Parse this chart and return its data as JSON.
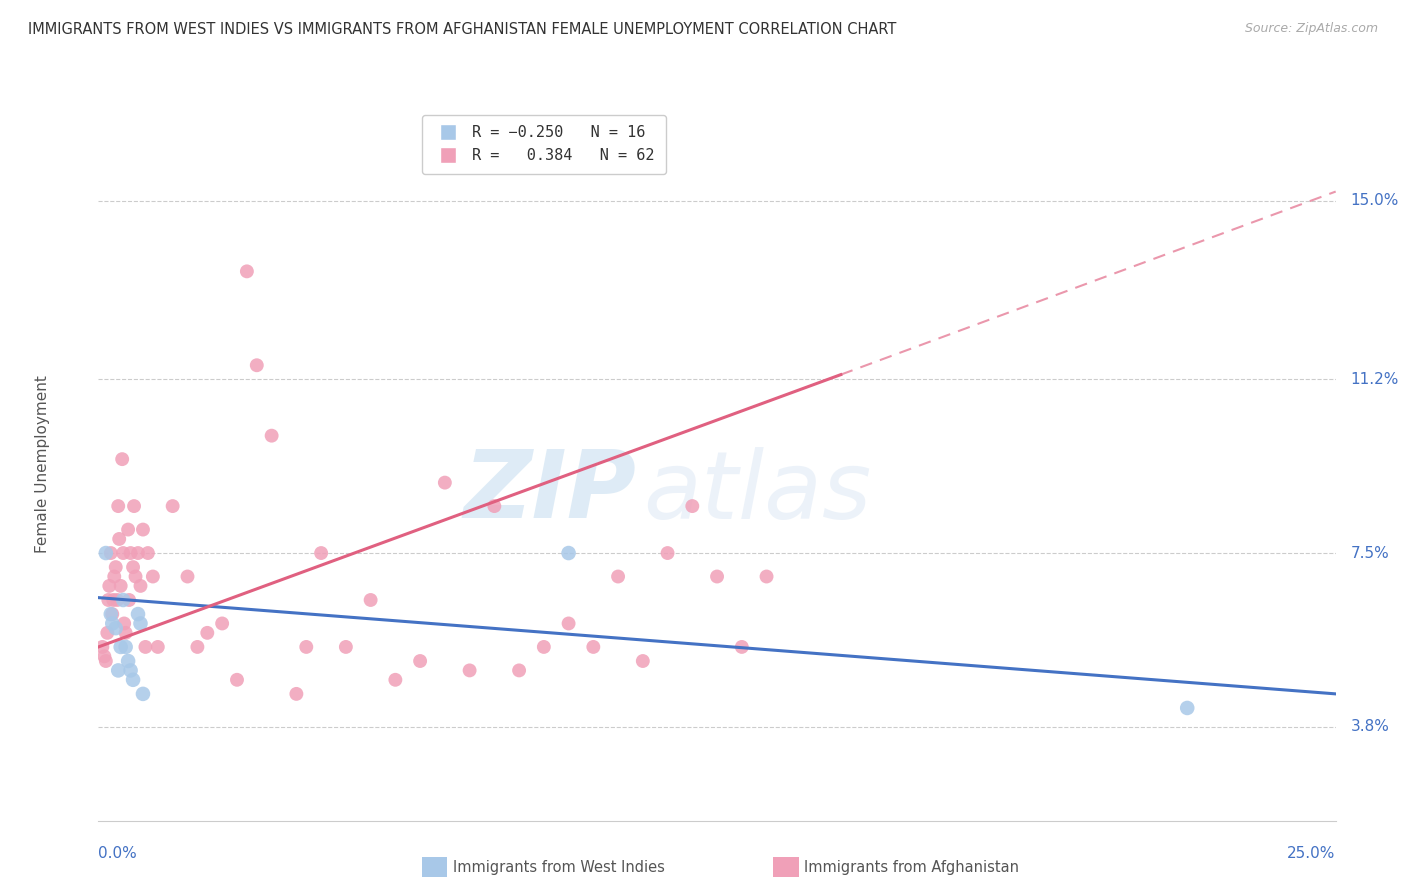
{
  "title": "IMMIGRANTS FROM WEST INDIES VS IMMIGRANTS FROM AFGHANISTAN FEMALE UNEMPLOYMENT CORRELATION CHART",
  "source": "Source: ZipAtlas.com",
  "ylabel": "Female Unemployment",
  "y_ticks": [
    3.8,
    7.5,
    11.2,
    15.0
  ],
  "x_range": [
    0.0,
    25.0
  ],
  "y_range": [
    1.8,
    17.0
  ],
  "color_west_indies": "#a8c8e8",
  "color_afghanistan": "#f0a0b8",
  "color_line_west_indies": "#4472c4",
  "color_line_afghanistan": "#e06080",
  "watermark_zip": "ZIP",
  "watermark_atlas": "atlas",
  "wi_line_x0": 0.0,
  "wi_line_y0": 6.55,
  "wi_line_x1": 25.0,
  "wi_line_y1": 4.5,
  "af_line_x0": 0.0,
  "af_line_y0": 5.5,
  "af_line_x1": 15.0,
  "af_line_y1": 11.3,
  "af_dash_x0": 15.0,
  "af_dash_y0": 11.3,
  "af_dash_x1": 25.0,
  "af_dash_y1": 15.2,
  "west_indies_x": [
    0.15,
    0.25,
    0.28,
    0.35,
    0.4,
    0.45,
    0.5,
    0.55,
    0.6,
    0.65,
    0.7,
    0.8,
    0.85,
    0.9,
    9.5,
    22.0
  ],
  "west_indies_y": [
    7.5,
    6.2,
    6.0,
    5.9,
    5.0,
    5.5,
    6.5,
    5.5,
    5.2,
    5.0,
    4.8,
    6.2,
    6.0,
    4.5,
    7.5,
    4.2
  ],
  "afghanistan_x": [
    0.08,
    0.12,
    0.15,
    0.18,
    0.2,
    0.22,
    0.25,
    0.28,
    0.3,
    0.32,
    0.35,
    0.38,
    0.4,
    0.42,
    0.45,
    0.48,
    0.5,
    0.52,
    0.55,
    0.6,
    0.62,
    0.65,
    0.7,
    0.72,
    0.75,
    0.8,
    0.85,
    0.9,
    0.95,
    1.0,
    1.1,
    1.2,
    1.5,
    1.8,
    2.0,
    2.2,
    2.5,
    3.0,
    3.5,
    4.0,
    4.5,
    5.0,
    5.5,
    6.0,
    6.5,
    7.0,
    7.5,
    8.0,
    8.5,
    9.0,
    9.5,
    10.0,
    10.5,
    11.0,
    11.5,
    12.0,
    12.5,
    13.0,
    13.5,
    2.8,
    3.2,
    4.2
  ],
  "afghanistan_y": [
    5.5,
    5.3,
    5.2,
    5.8,
    6.5,
    6.8,
    7.5,
    6.2,
    6.5,
    7.0,
    7.2,
    6.5,
    8.5,
    7.8,
    6.8,
    9.5,
    7.5,
    6.0,
    5.8,
    8.0,
    6.5,
    7.5,
    7.2,
    8.5,
    7.0,
    7.5,
    6.8,
    8.0,
    5.5,
    7.5,
    7.0,
    5.5,
    8.5,
    7.0,
    5.5,
    5.8,
    6.0,
    13.5,
    10.0,
    4.5,
    7.5,
    5.5,
    6.5,
    4.8,
    5.2,
    9.0,
    5.0,
    8.5,
    5.0,
    5.5,
    6.0,
    5.5,
    7.0,
    5.2,
    7.5,
    8.5,
    7.0,
    5.5,
    7.0,
    4.8,
    11.5,
    5.5
  ]
}
